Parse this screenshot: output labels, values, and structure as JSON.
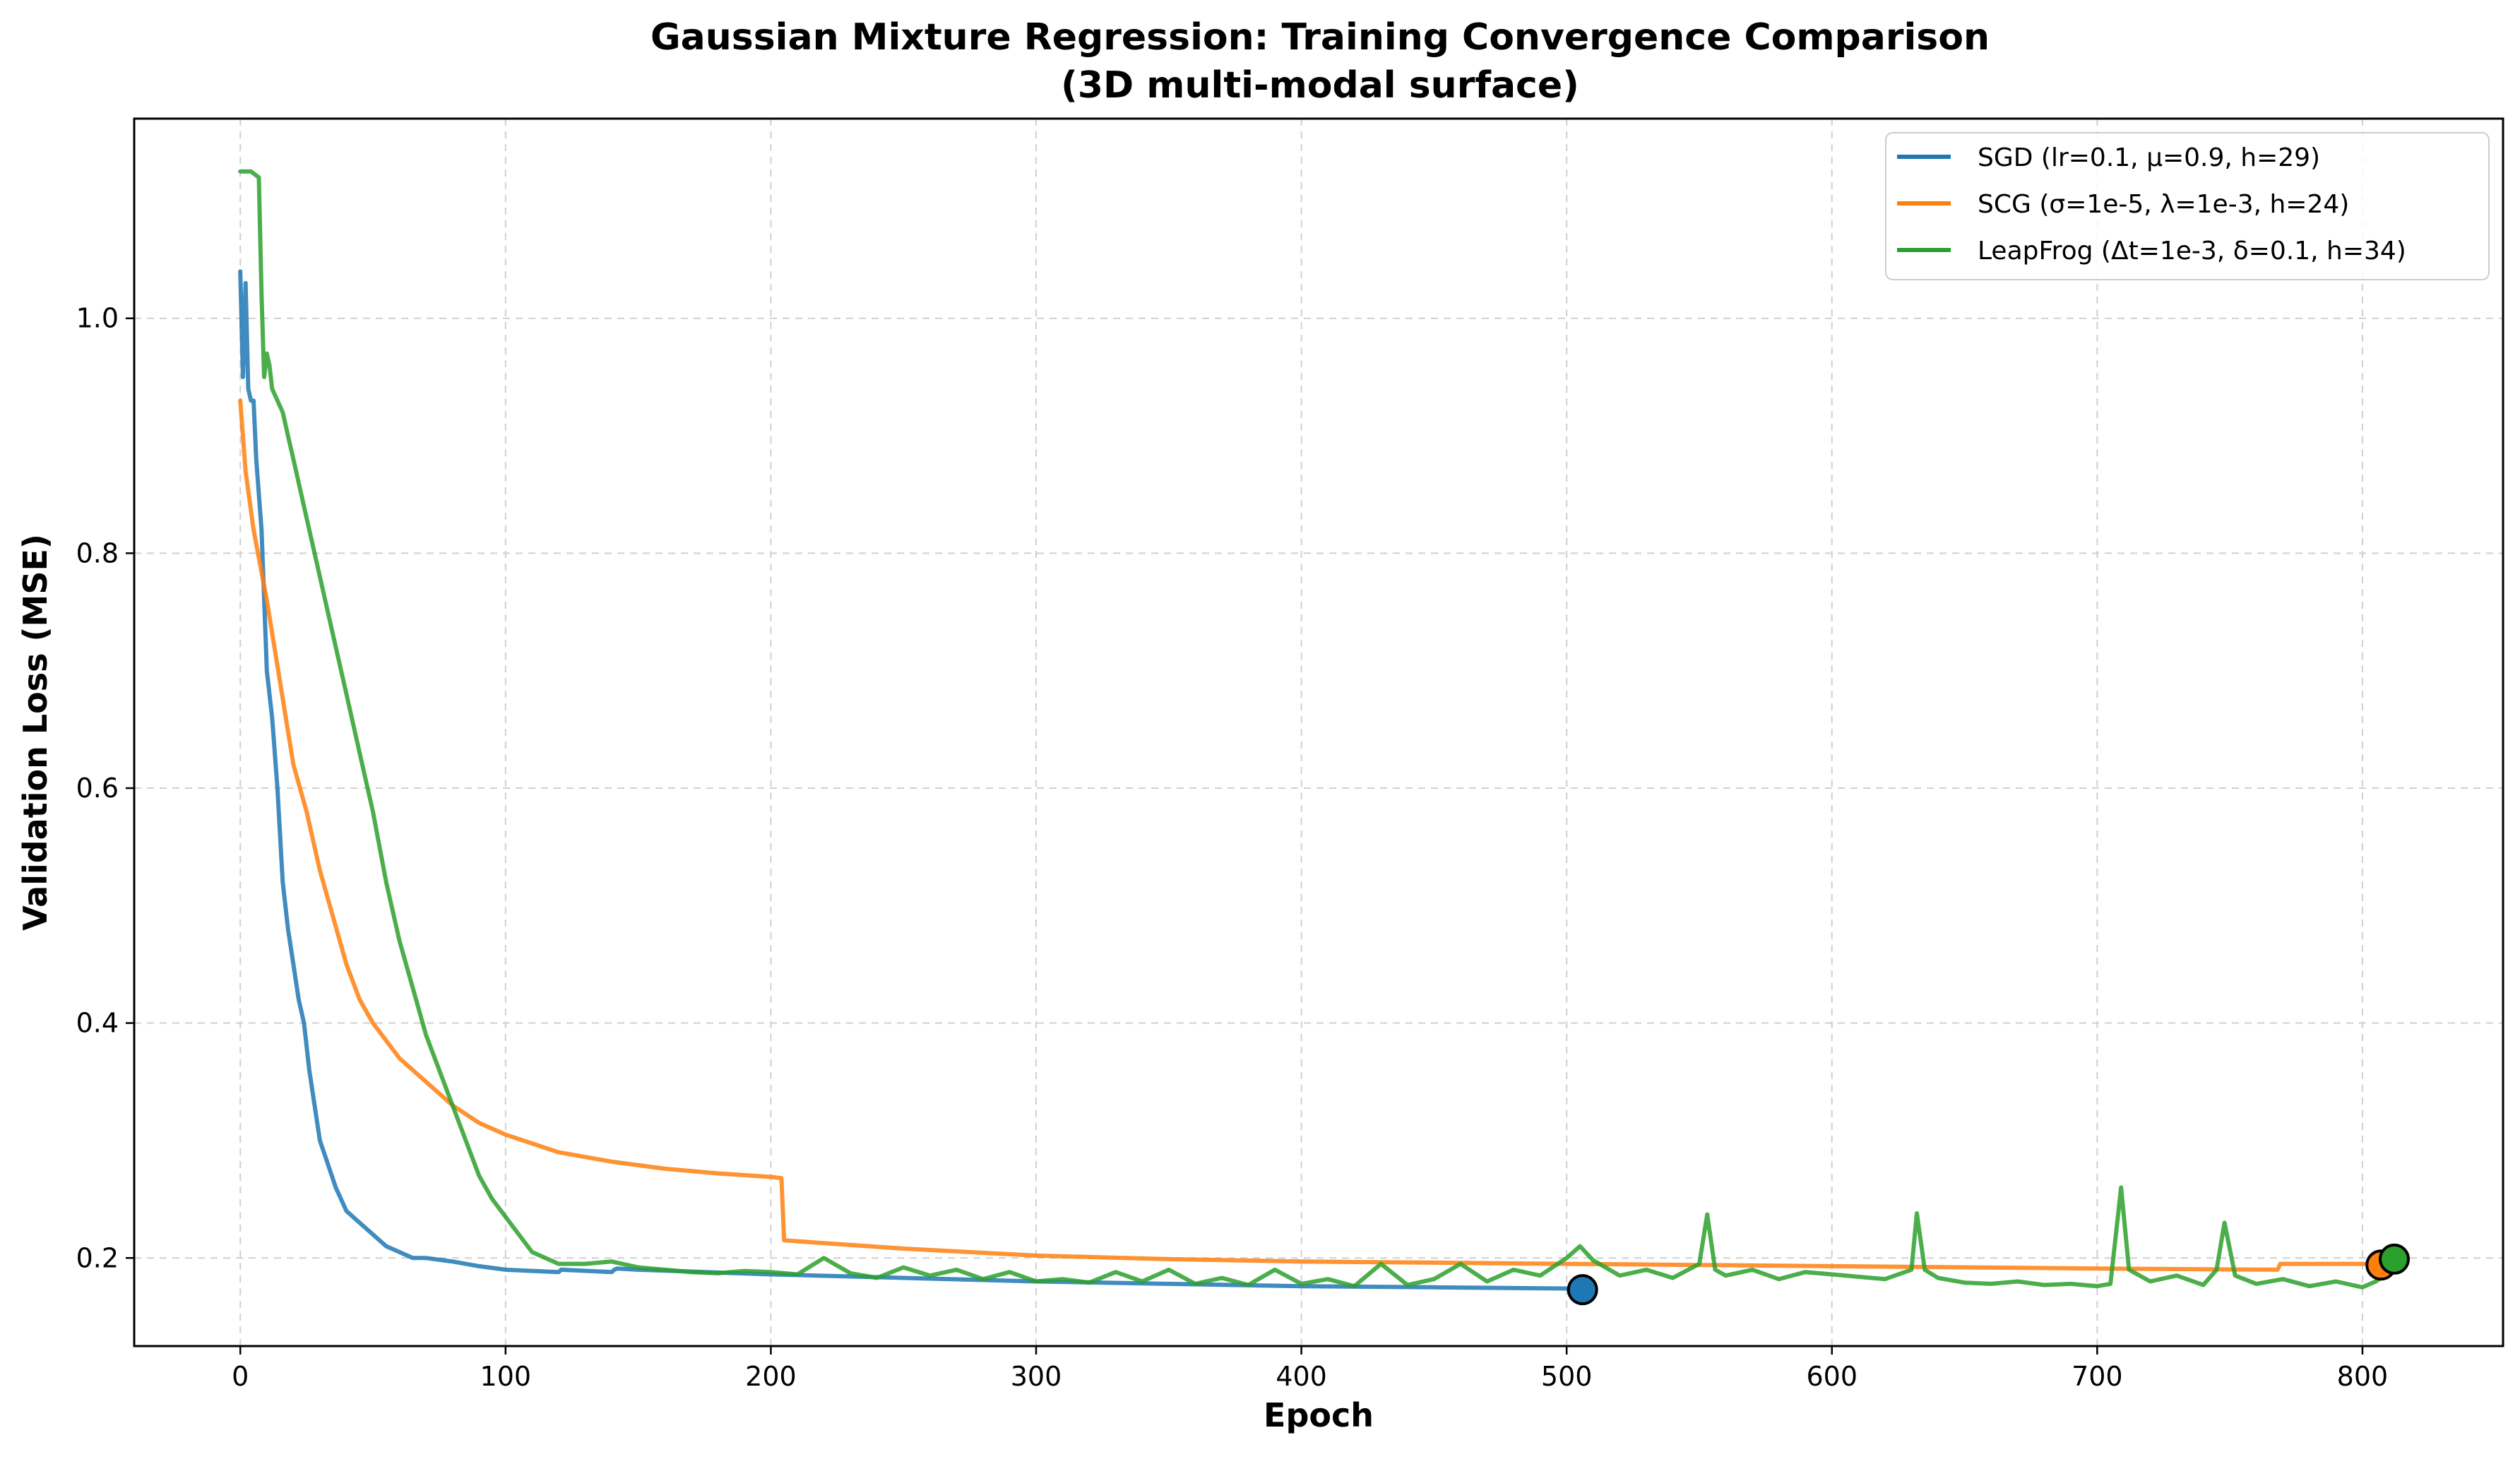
{
  "chart_data": {
    "type": "line",
    "title": "Gaussian Mixture Regression: Training Convergence Comparison",
    "subtitle": "(3D multi-modal surface)",
    "xlabel": "Epoch",
    "ylabel": "Validation Loss (MSE)",
    "xlim": [
      -40,
      853
    ],
    "ylim": [
      0.125,
      1.17
    ],
    "xticks": [
      0,
      100,
      200,
      300,
      400,
      500,
      600,
      700,
      800
    ],
    "yticks": [
      0.2,
      0.4,
      0.6,
      0.8,
      1.0
    ],
    "ytick_labels": [
      "0.2",
      "0.4",
      "0.6",
      "0.8",
      "1.0"
    ],
    "grid": true,
    "legend_position": "top-right",
    "series": [
      {
        "name": "SGD (lr=0.1, μ=0.9, h=29)",
        "color": "#1f77b4",
        "x": [
          0,
          1,
          2,
          3,
          4,
          5,
          6,
          8,
          10,
          12,
          14,
          16,
          18,
          20,
          22,
          24,
          26,
          28,
          30,
          33,
          36,
          40,
          45,
          50,
          55,
          60,
          65,
          70,
          80,
          90,
          100,
          110,
          120,
          121,
          140,
          141,
          142,
          150,
          200,
          250,
          300,
          350,
          400,
          450,
          500,
          505
        ],
        "y": [
          1.04,
          0.95,
          1.03,
          0.94,
          0.93,
          0.93,
          0.88,
          0.82,
          0.7,
          0.66,
          0.6,
          0.52,
          0.48,
          0.45,
          0.42,
          0.4,
          0.36,
          0.33,
          0.3,
          0.28,
          0.26,
          0.24,
          0.23,
          0.22,
          0.21,
          0.205,
          0.2,
          0.2,
          0.197,
          0.193,
          0.19,
          0.189,
          0.188,
          0.19,
          0.188,
          0.19,
          0.191,
          0.19,
          0.186,
          0.183,
          0.18,
          0.178,
          0.176,
          0.175,
          0.174,
          0.174
        ],
        "end_marker": [
          506,
          0.173
        ]
      },
      {
        "name": "SCG (σ=1e-5, λ=1e-3, h=24)",
        "color": "#ff7f0e",
        "x": [
          0,
          2,
          5,
          10,
          15,
          20,
          25,
          30,
          35,
          40,
          45,
          50,
          60,
          70,
          80,
          90,
          100,
          120,
          140,
          160,
          180,
          200,
          204,
          205,
          250,
          300,
          350,
          400,
          450,
          500,
          550,
          600,
          700,
          768,
          769,
          805
        ],
        "y": [
          0.93,
          0.87,
          0.82,
          0.76,
          0.69,
          0.62,
          0.58,
          0.53,
          0.49,
          0.45,
          0.42,
          0.4,
          0.37,
          0.35,
          0.33,
          0.315,
          0.305,
          0.29,
          0.282,
          0.276,
          0.272,
          0.269,
          0.268,
          0.215,
          0.208,
          0.202,
          0.199,
          0.197,
          0.196,
          0.195,
          0.194,
          0.193,
          0.191,
          0.19,
          0.195,
          0.195
        ],
        "end_marker": [
          807,
          0.194
        ]
      },
      {
        "name": "LeapFrog (Δt=1e-3, δ=0.1, h=34)",
        "color": "#2ca02c",
        "x": [
          0,
          4,
          7,
          8,
          9,
          10,
          11,
          12,
          14,
          16,
          18,
          20,
          22,
          25,
          28,
          30,
          35,
          40,
          45,
          50,
          55,
          60,
          65,
          70,
          75,
          80,
          85,
          90,
          95,
          100,
          105,
          110,
          115,
          120,
          130,
          140,
          150,
          160,
          170,
          180,
          190,
          200,
          210,
          220,
          230,
          240,
          250,
          260,
          270,
          280,
          290,
          300,
          310,
          320,
          330,
          340,
          350,
          360,
          370,
          380,
          390,
          400,
          410,
          420,
          430,
          440,
          450,
          460,
          470,
          480,
          490,
          500,
          505,
          510,
          520,
          530,
          540,
          550,
          553,
          556,
          560,
          570,
          580,
          590,
          600,
          610,
          620,
          630,
          632,
          635,
          640,
          650,
          660,
          670,
          680,
          690,
          700,
          705,
          709,
          712,
          720,
          730,
          740,
          745,
          748,
          752,
          760,
          770,
          780,
          790,
          800,
          805,
          810
        ],
        "y": [
          1.125,
          1.125,
          1.12,
          1.02,
          0.95,
          0.97,
          0.96,
          0.94,
          0.93,
          0.92,
          0.9,
          0.88,
          0.86,
          0.83,
          0.8,
          0.78,
          0.73,
          0.68,
          0.63,
          0.58,
          0.52,
          0.47,
          0.43,
          0.39,
          0.36,
          0.33,
          0.3,
          0.27,
          0.25,
          0.235,
          0.22,
          0.205,
          0.2,
          0.195,
          0.195,
          0.197,
          0.192,
          0.19,
          0.188,
          0.187,
          0.189,
          0.188,
          0.186,
          0.2,
          0.187,
          0.183,
          0.192,
          0.185,
          0.19,
          0.182,
          0.188,
          0.18,
          0.182,
          0.179,
          0.188,
          0.18,
          0.19,
          0.178,
          0.183,
          0.177,
          0.19,
          0.178,
          0.182,
          0.176,
          0.195,
          0.177,
          0.182,
          0.195,
          0.18,
          0.19,
          0.185,
          0.2,
          0.21,
          0.198,
          0.185,
          0.19,
          0.183,
          0.195,
          0.237,
          0.19,
          0.185,
          0.19,
          0.182,
          0.188,
          0.186,
          0.184,
          0.182,
          0.19,
          0.238,
          0.19,
          0.183,
          0.179,
          0.178,
          0.18,
          0.177,
          0.178,
          0.176,
          0.178,
          0.26,
          0.19,
          0.18,
          0.185,
          0.177,
          0.19,
          0.23,
          0.185,
          0.178,
          0.182,
          0.176,
          0.18,
          0.175,
          0.18,
          0.188
        ],
        "end_marker": [
          812,
          0.199
        ]
      }
    ]
  }
}
